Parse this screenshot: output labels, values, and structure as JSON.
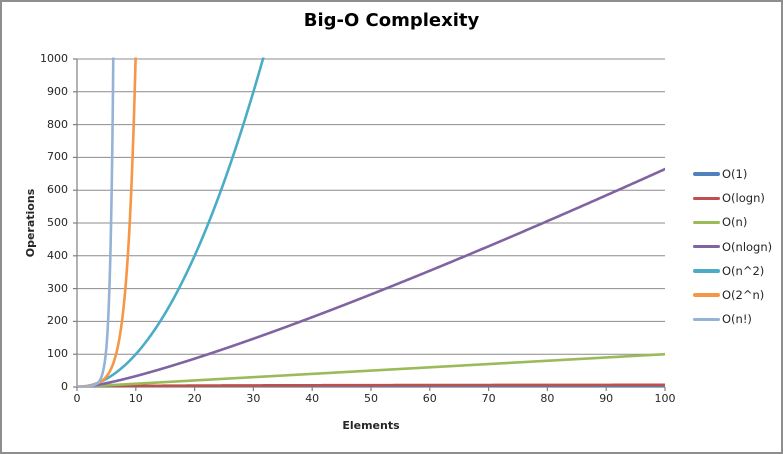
{
  "chart_data": {
    "type": "line",
    "title": "Big-O Complexity",
    "xlabel": "Elements",
    "ylabel": "Operations",
    "xlim": [
      0,
      100
    ],
    "ylim": [
      0,
      1000
    ],
    "x_ticks": [
      0,
      10,
      20,
      30,
      40,
      50,
      60,
      70,
      80,
      90,
      100
    ],
    "y_ticks": [
      0,
      100,
      200,
      300,
      400,
      500,
      600,
      700,
      800,
      900,
      1000
    ],
    "grid": "horizontal",
    "legend_position": "right",
    "series": [
      {
        "label": "O(1)",
        "color": "#4F81BD",
        "formula": "1",
        "description": "constant, y=1 for all n"
      },
      {
        "label": "O(logn)",
        "color": "#C0504D",
        "formula": "log2(n)",
        "description": "y=log2(n); ~6.64 at n=100, hugs x-axis"
      },
      {
        "label": "O(n)",
        "color": "#9BBB59",
        "formula": "n",
        "description": "linear; reaches 100 at n=100"
      },
      {
        "label": "O(nlogn)",
        "color": "#8064A2",
        "formula": "n*log2(n)",
        "description": "reaches ~664 at n=100"
      },
      {
        "label": "O(n^2)",
        "color": "#4BACC6",
        "formula": "n^2",
        "description": "exits top (1000) at n~31.6"
      },
      {
        "label": "O(2^n)",
        "color": "#F79646",
        "formula": "2^n",
        "description": "exits top (1000) at n~10"
      },
      {
        "label": "O(n!)",
        "color": "#95B3D7",
        "formula": "n!",
        "description": "exits top (1000) at n~6.4"
      }
    ]
  },
  "colors": {
    "axis": "#808080",
    "gridline": "#8C8C8C",
    "tick_text": "#262626",
    "title_text": "#000000",
    "frame_border": "#8E8E8E",
    "background": "#FFFFFF"
  }
}
